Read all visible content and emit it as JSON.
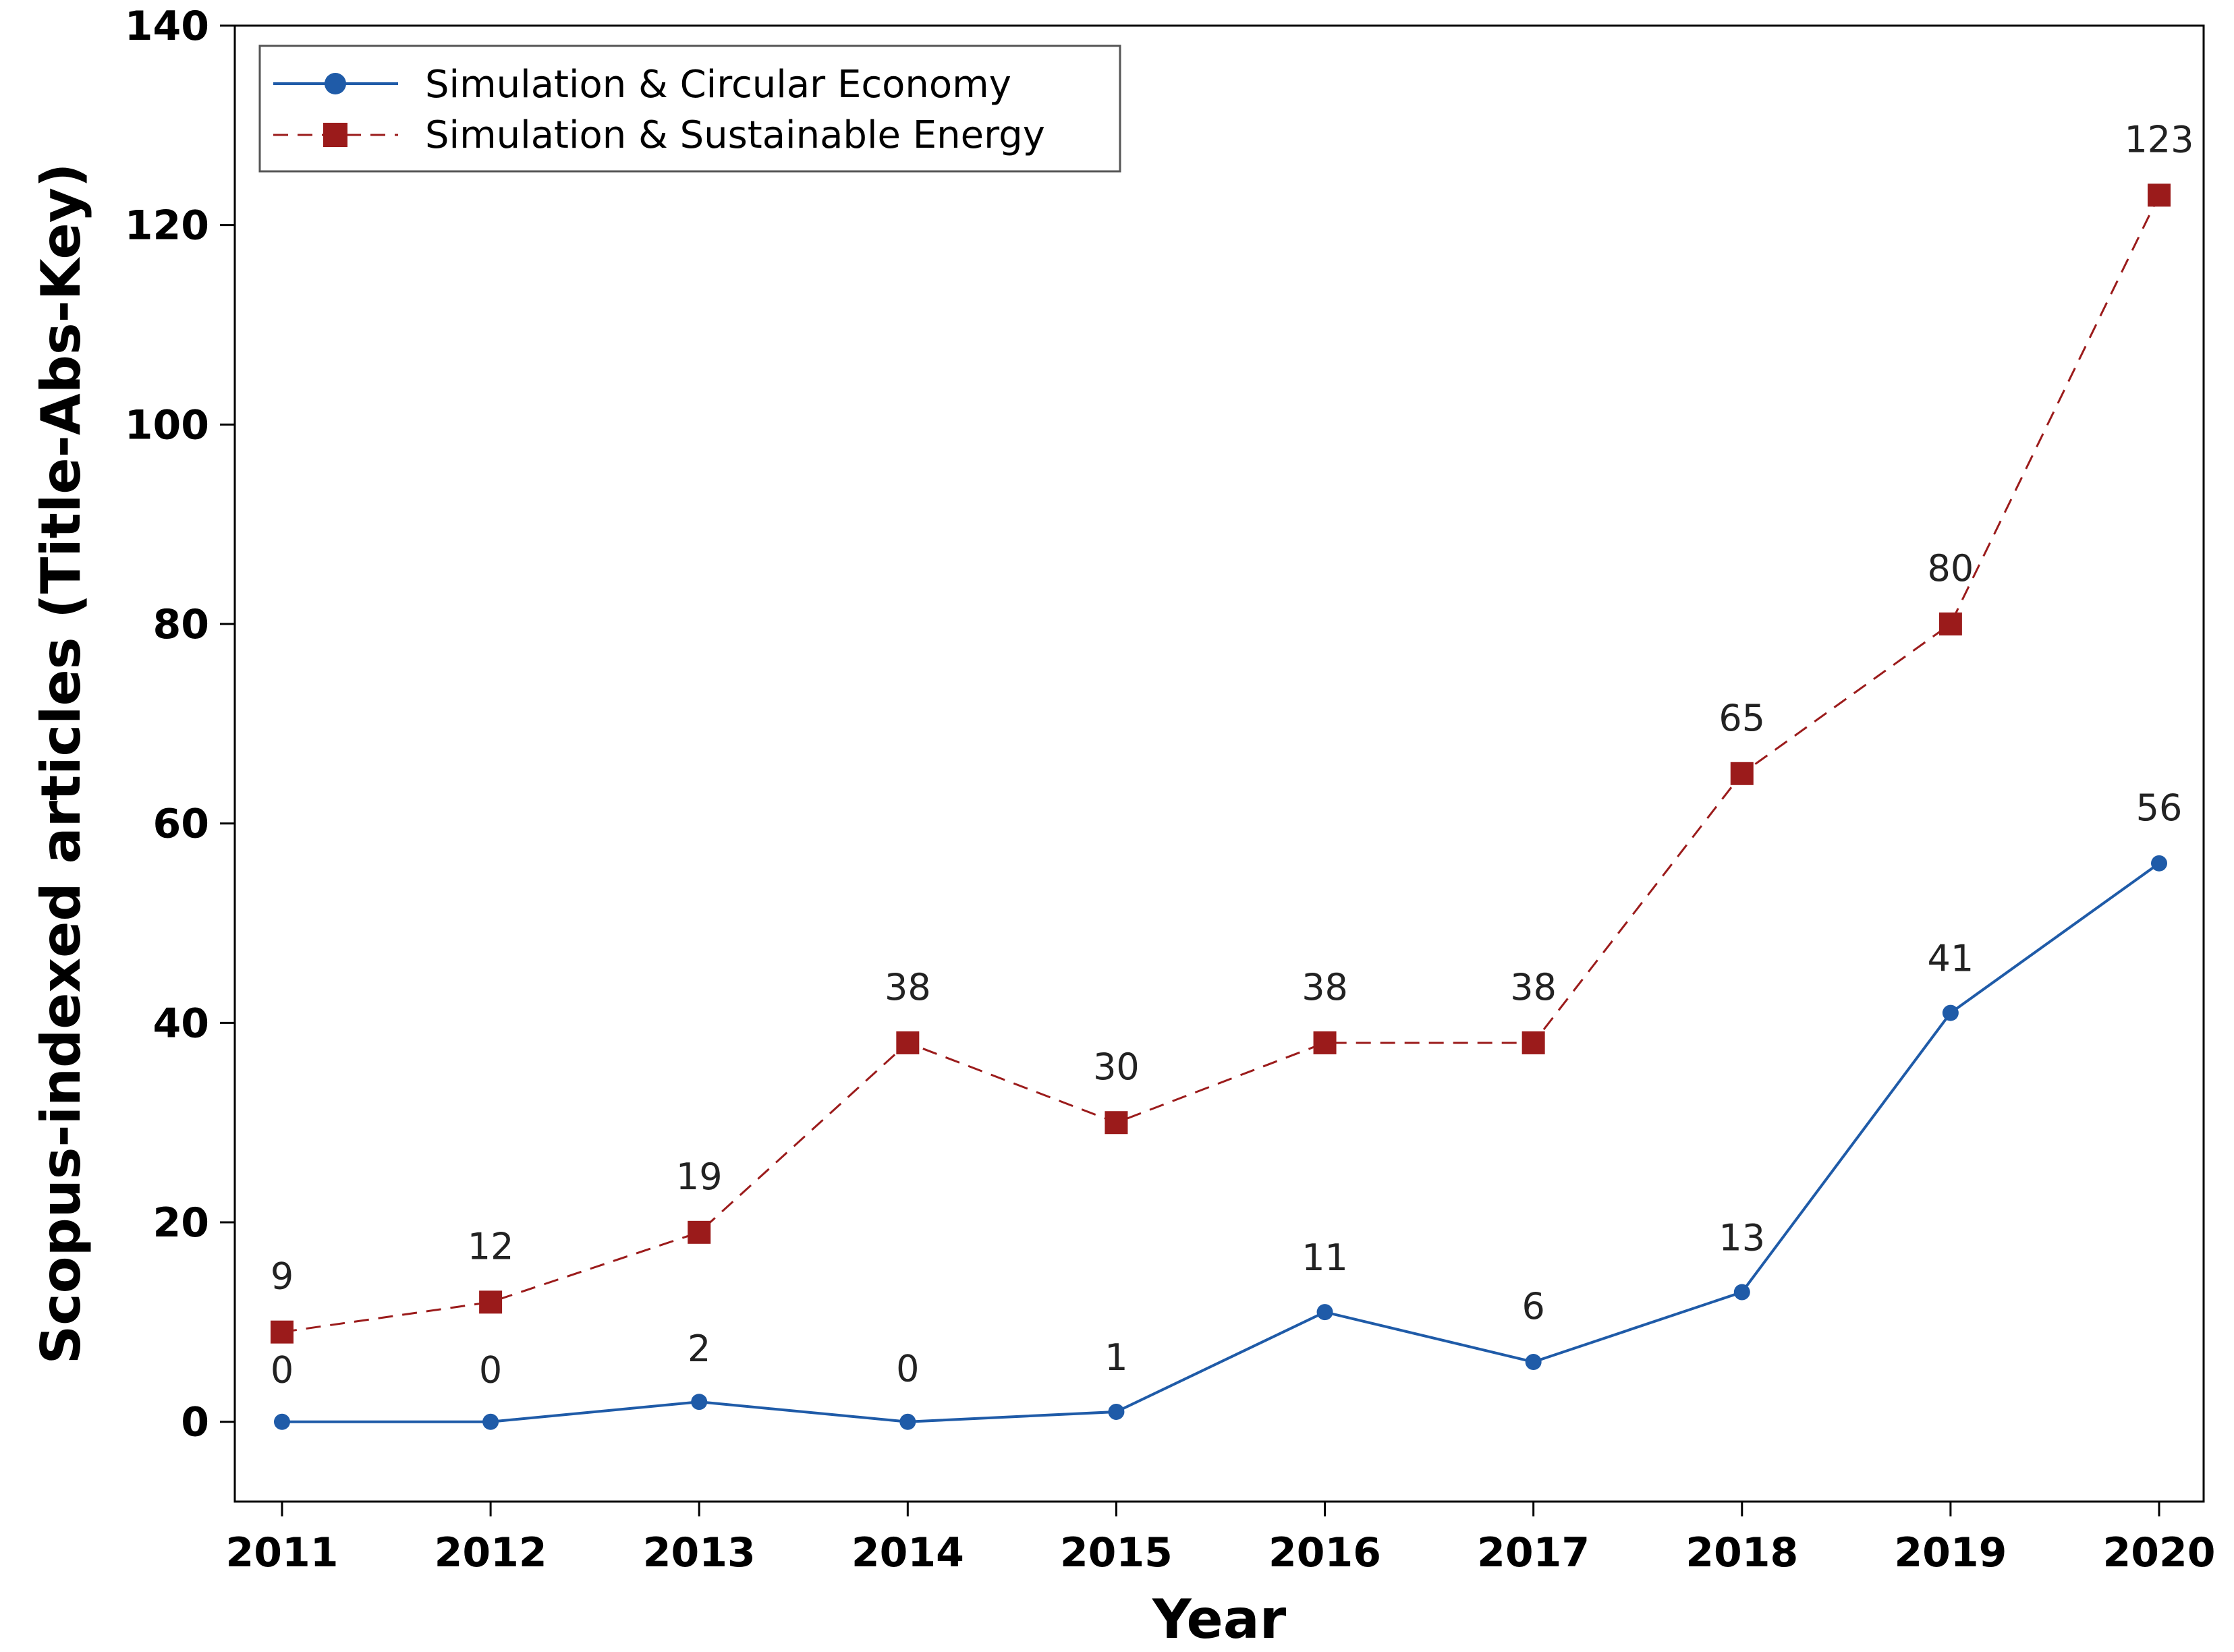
{
  "chart_data": {
    "type": "line",
    "title": "",
    "xlabel": "Year",
    "ylabel": "Scopus-indexed articles (Title-Abs-Key)",
    "categories": [
      "2011",
      "2012",
      "2013",
      "2014",
      "2015",
      "2016",
      "2017",
      "2018",
      "2019",
      "2020"
    ],
    "ylim": [
      -8,
      140
    ],
    "yticks": [
      "0",
      "20",
      "40",
      "60",
      "80",
      "100",
      "120",
      "140"
    ],
    "grid": false,
    "legend_position": "top-left",
    "series": [
      {
        "name": "Simulation & Circular Economy",
        "values": [
          0,
          0,
          2,
          0,
          1,
          11,
          6,
          13,
          41,
          56
        ],
        "labels": [
          "0",
          "0",
          "2",
          "0",
          "1",
          "11",
          "6",
          "13",
          "41",
          "56"
        ],
        "color": "#1f5ba8",
        "line_style": "solid",
        "marker": "circle"
      },
      {
        "name": "Simulation & Sustainable Energy",
        "values": [
          9,
          12,
          19,
          38,
          30,
          38,
          38,
          65,
          80,
          123
        ],
        "labels": [
          "9",
          "12",
          "19",
          "38",
          "30",
          "38",
          "38",
          "65",
          "80",
          "123"
        ],
        "color": "#9b1b1b",
        "line_style": "dashed",
        "marker": "square"
      }
    ]
  }
}
